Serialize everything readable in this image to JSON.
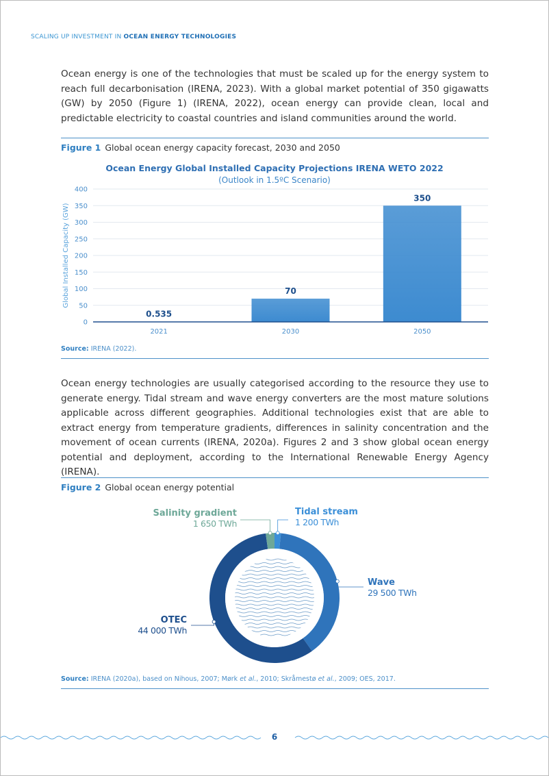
{
  "header": {
    "prefix": "SCALING UP INVESTMENT IN",
    "emphasis": "OCEAN ENERGY TECHNOLOGIES"
  },
  "paragraphs": [
    "Ocean energy is one of the technologies that must be scaled up for the energy system to reach full decarbonisation (IRENA, 2023). With a global market potential of 350 gigawatts (GW) by 2050 (Figure 1) (IRENA, 2022), ocean energy can provide clean, local and predictable electricity to coastal countries and island communities around the world.",
    "Ocean energy technologies are usually categorised according to the resource they use to generate energy. Tidal stream and wave energy converters are the most mature solutions applicable across different geographies. Additional technologies exist that are able to extract energy from temperature gradients, differences in salinity concentration and the movement of ocean currents (IRENA, 2020a). Figures 2 and 3 show global ocean energy potential and deployment, according to the International Renewable Energy Agency (IRENA)."
  ],
  "figures": [
    {
      "label": "Figure 1",
      "caption": "Global ocean energy capacity forecast, 2030 and 2050",
      "source_label": "Source:",
      "source": [
        "IRENA (2022)."
      ]
    },
    {
      "label": "Figure 2",
      "caption": "Global ocean energy potential",
      "source_label": "Source:",
      "source": [
        "IRENA (2020a), based on Nihous, 2007; Mørk ",
        "et al.",
        ", 2010; Skråmestø ",
        "et al.",
        ", 2009; OES, 2017."
      ]
    }
  ],
  "chart_data": [
    {
      "type": "bar",
      "title": "Ocean Energy Global Installed Capacity Projections IRENA WETO 2022",
      "subtitle": "(Outlook in 1.5ºC Scenario)",
      "y_label": "Global Installed Capacity (GW)",
      "categories": [
        "2021",
        "2030",
        "2050"
      ],
      "values": [
        0.535,
        70,
        350
      ],
      "color": "#3d8bd0",
      "ylim": [
        0,
        400
      ],
      "yticks": [
        0,
        50,
        100,
        150,
        200,
        250,
        300,
        350,
        400
      ],
      "grid": true
    },
    {
      "type": "donut",
      "categories": [
        "Tidal stream",
        "Wave",
        "OTEC",
        "Salinity gradient"
      ],
      "values": [
        1200,
        29500,
        44000,
        1650
      ],
      "value_labels": [
        "1 200 TWh",
        "29 500 TWh",
        "44 000 TWh",
        "1 650 TWh"
      ],
      "colors": [
        "#3b8fd8",
        "#2f74bb",
        "#1e4f8d",
        "#6ea898"
      ]
    }
  ],
  "page_number": "6"
}
